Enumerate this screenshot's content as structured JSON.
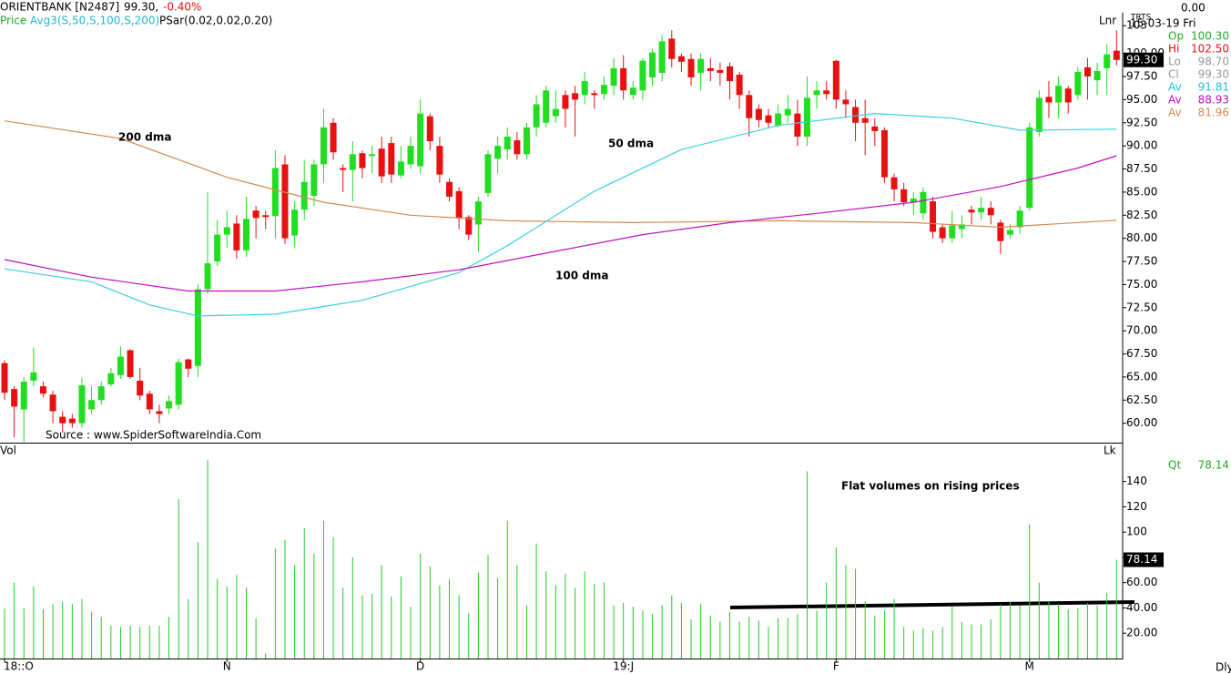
{
  "header": {
    "symbol": "ORIENTBANK [N2487]",
    "price": "99.30,",
    "change": "-0.40%",
    "series_label": "Price",
    "indicator": "Avg3(S,50,S,100,S,200)",
    "psar": "PSar(0.02,0.02,0.20)",
    "right_value": "0.00",
    "system": "TRTS",
    "date": "15-03-19 Fri",
    "scale_mode": "Lnr",
    "lock": "Lk",
    "interval": "Dly",
    "volume_label": "Vol"
  },
  "quote": [
    {
      "label": "Op",
      "value": "100.30"
    },
    {
      "label": "Hi",
      "value": "102.50"
    },
    {
      "label": "Lo",
      "value": "98.70"
    },
    {
      "label": "Cl",
      "value": "99.30"
    },
    {
      "label": "Av",
      "value": "91.81"
    },
    {
      "label": "Av",
      "value": "88.93"
    },
    {
      "label": "Av",
      "value": "81.96"
    }
  ],
  "volume_quote": {
    "label": "Qt",
    "value": "78.14"
  },
  "chart_data": [
    {
      "type": "candlestick",
      "source": "Source : www.SpiderSoftwareIndia.Com",
      "last_label": "99.30",
      "up_color": "#22dd22",
      "down_color": "#e81010",
      "ylim": [
        57.9,
        104.3
      ],
      "yticks": [
        {
          "value": 60,
          "label": "60.00"
        },
        {
          "value": 62.5,
          "label": "62.50"
        },
        {
          "value": 65,
          "label": "65.00"
        },
        {
          "value": 67.5,
          "label": "67.50"
        },
        {
          "value": 70,
          "label": "70.00"
        },
        {
          "value": 72.5,
          "label": "72.50"
        },
        {
          "value": 75,
          "label": "75.00"
        },
        {
          "value": 77.5,
          "label": "77.50"
        },
        {
          "value": 80,
          "label": "80.00"
        },
        {
          "value": 82.5,
          "label": "82.50"
        },
        {
          "value": 85,
          "label": "85.00"
        },
        {
          "value": 87.5,
          "label": "87.50"
        },
        {
          "value": 90,
          "label": "90.00"
        },
        {
          "value": 92.5,
          "label": "92.50"
        },
        {
          "value": 95,
          "label": "95.00"
        },
        {
          "value": 97.5,
          "label": "97.50"
        },
        {
          "value": 100,
          "label": "100.00"
        },
        103
      ],
      "open": [
        66.5,
        63.7,
        61.5,
        64.6,
        64,
        63.1,
        60.7,
        60.5,
        60,
        61.5,
        62.5,
        64.2,
        65.2,
        67.9,
        64.6,
        63.2,
        61.3,
        61.6,
        62,
        66.9,
        66.2,
        74.5,
        77.5,
        80.4,
        81.6,
        78.7,
        83,
        82.5,
        82.4,
        88,
        80.3,
        83.1,
        84.6,
        88,
        92.5,
        87.6,
        87.4,
        89.2,
        88.9,
        89.7,
        90.3,
        86.8,
        88,
        87.8,
        93.2,
        90,
        86.1,
        85.1,
        82.3,
        81.5,
        84.9,
        88.6,
        89.6,
        90.6,
        89.1,
        92,
        92.5,
        93.2,
        95.5,
        95.7,
        95.5,
        95.7,
        95.6,
        96.5,
        98.4,
        95.5,
        96,
        97.4,
        97.9,
        101.6,
        99.7,
        99.4,
        97.9,
        98.4,
        98.2,
        98.6,
        97.7,
        95.5,
        94,
        93.3,
        92.2,
        93.3,
        93.5,
        91,
        95.5,
        96,
        99.2,
        95,
        94.2,
        93,
        92.1,
        91.7,
        86.6,
        85.3,
        83.9,
        82.7,
        84,
        81.2,
        80,
        81,
        83.1,
        82.8,
        83.3,
        81.7,
        80.4,
        81.2,
        83.3,
        91.5,
        95.3,
        94.7,
        96.2,
        95.5,
        98.5,
        97.1,
        98.4,
        100.3
      ],
      "high": [
        66.8,
        64,
        65,
        68.2,
        64.5,
        63.5,
        61.3,
        61,
        64.9,
        64,
        64.5,
        66,
        68.3,
        68,
        66,
        63.5,
        62,
        63,
        67,
        67,
        75,
        85,
        82,
        83,
        82.5,
        84.5,
        83.5,
        83,
        89.5,
        89,
        84,
        88.5,
        88.5,
        94,
        93,
        88,
        90.5,
        89.5,
        90,
        91,
        91,
        90,
        91,
        95,
        93.5,
        91,
        86.5,
        85.5,
        82.5,
        84.5,
        89.5,
        91,
        92,
        91.5,
        92.5,
        95.5,
        96.5,
        96,
        96,
        96.5,
        98,
        96,
        97.5,
        99.5,
        99.8,
        97,
        99.5,
        100.5,
        102,
        102.5,
        100,
        100,
        100,
        99.5,
        99,
        99,
        98,
        96,
        94.5,
        94,
        94.5,
        95.5,
        95,
        97.5,
        97,
        97,
        99.3,
        96,
        95,
        95,
        93,
        92,
        87,
        86,
        85,
        85.5,
        84.5,
        81.5,
        83,
        82.5,
        83.5,
        84.5,
        84,
        82,
        81.5,
        83.5,
        92.5,
        96,
        97,
        97.5,
        96.5,
        98.5,
        99.5,
        99,
        101,
        102.5
      ],
      "low": [
        62.5,
        58.5,
        58,
        64,
        62.8,
        60,
        59,
        59.5,
        59.5,
        61,
        62,
        64,
        64.8,
        64.8,
        62.5,
        61,
        60,
        61,
        61.5,
        65,
        65,
        74,
        77,
        79,
        77.8,
        78,
        80,
        81,
        80,
        79.4,
        79,
        82,
        83.5,
        86,
        88.5,
        85,
        84,
        86.5,
        87,
        86,
        86,
        86.5,
        87.5,
        87,
        89.5,
        86,
        84,
        81,
        79.8,
        78.5,
        84.5,
        87,
        88.5,
        88.5,
        88.5,
        91,
        92,
        92.5,
        92,
        91,
        94.5,
        94,
        95,
        95.5,
        95,
        95,
        95,
        96.5,
        97,
        98.5,
        98,
        96.5,
        96,
        97,
        96.5,
        95,
        94,
        91,
        92,
        92,
        92,
        92.5,
        90,
        90,
        94,
        95,
        94,
        93,
        90.5,
        89,
        90,
        86,
        84,
        83.5,
        82.5,
        82,
        80,
        79.5,
        79.5,
        80,
        81.5,
        82,
        81.5,
        78.3,
        80,
        80.5,
        83,
        91,
        93,
        93,
        93.5,
        95,
        95,
        95.5,
        95.5,
        98.7
      ],
      "close": [
        63.3,
        61.8,
        64.5,
        65.5,
        63.2,
        61.3,
        60,
        60,
        64.1,
        62.5,
        64,
        65.4,
        67.2,
        65,
        63,
        61.5,
        61,
        62.4,
        66.6,
        65.9,
        74.5,
        77.3,
        80.4,
        81.2,
        78.7,
        82.1,
        82.2,
        82.3,
        87.6,
        80,
        83.1,
        86.1,
        88,
        92,
        89.3,
        87.4,
        89.1,
        87.6,
        89.1,
        86.7,
        86.9,
        88.3,
        90,
        93.5,
        90.5,
        86.9,
        84.5,
        82.2,
        80.4,
        84,
        89.1,
        90,
        91,
        89.1,
        92,
        94.5,
        96,
        94,
        94,
        95,
        97,
        95.5,
        96.6,
        98.4,
        96,
        96.3,
        99.2,
        100.1,
        101.3,
        99.4,
        99.1,
        97.4,
        99.4,
        98.1,
        97.9,
        97,
        95.5,
        93,
        92.8,
        92.5,
        93.5,
        94,
        91,
        95.2,
        96,
        95.6,
        95,
        94.5,
        92.5,
        92.5,
        91.6,
        86.6,
        85.3,
        83.9,
        84.3,
        85,
        80.7,
        80,
        81.4,
        81.5,
        82.8,
        83.3,
        82.5,
        79.7,
        80.9,
        83,
        92,
        95.2,
        94.7,
        96.5,
        94.7,
        98,
        97.5,
        98.1,
        99.9,
        99.3
      ],
      "series": [
        {
          "name": "200 dma",
          "color": "#d48a50",
          "x": [
            0,
            12,
            23,
            33,
            42,
            52,
            65,
            80,
            94,
            103,
            115
          ],
          "values": [
            92.7,
            90.8,
            86.6,
            83.9,
            82.5,
            81.9,
            81.7,
            81.9,
            81.7,
            81.2,
            81.96
          ]
        },
        {
          "name": "50 dma",
          "color": "#3ccfe0",
          "x": [
            0,
            9,
            15,
            20,
            28,
            37,
            47,
            52,
            61,
            70,
            80,
            90,
            98,
            105,
            115
          ],
          "values": [
            76.7,
            75.3,
            72.8,
            71.6,
            71.8,
            73.3,
            76.3,
            79.2,
            85.1,
            89.6,
            92.2,
            93.5,
            93.0,
            91.7,
            91.81
          ]
        },
        {
          "name": "100 dma",
          "color": "#c010c0",
          "x": [
            0,
            9,
            19,
            28,
            37,
            47,
            56,
            66,
            75,
            84,
            94,
            103,
            111,
            115
          ],
          "values": [
            77.7,
            75.8,
            74.3,
            74.3,
            75.3,
            76.6,
            78.4,
            80.4,
            81.7,
            82.7,
            83.9,
            85.6,
            87.6,
            88.93
          ]
        }
      ]
    },
    {
      "type": "bar",
      "annotation": "Flat volumes on rising prices",
      "last_label": "78.14",
      "color": "#22cc22",
      "ylim": [
        0,
        170
      ],
      "yticks": [
        {
          "value": 20,
          "label": "20.00"
        },
        {
          "value": 40,
          "label": "40.00"
        },
        {
          "value": 60,
          "label": "60.00"
        },
        {
          "value": 80,
          "label": "80.00"
        },
        {
          "value": 100,
          "label": "100"
        },
        {
          "value": 120,
          "label": "120"
        },
        {
          "value": 140,
          "label": "140"
        }
      ],
      "categories": [
        "18::O",
        null,
        null,
        null,
        null,
        null,
        null,
        null,
        null,
        null,
        null,
        null,
        null,
        null,
        null,
        null,
        null,
        null,
        null,
        null,
        null,
        null,
        null,
        "N",
        null,
        null,
        null,
        null,
        null,
        null,
        null,
        null,
        null,
        null,
        null,
        null,
        null,
        null,
        null,
        null,
        null,
        null,
        null,
        "D",
        null,
        null,
        null,
        null,
        null,
        null,
        null,
        null,
        null,
        null,
        null,
        null,
        null,
        null,
        null,
        null,
        null,
        null,
        null,
        null,
        "19:J",
        null,
        null,
        null,
        null,
        null,
        null,
        null,
        null,
        null,
        null,
        null,
        null,
        null,
        null,
        null,
        null,
        null,
        null,
        null,
        null,
        null,
        "F",
        null,
        null,
        null,
        null,
        null,
        null,
        null,
        null,
        null,
        null,
        null,
        null,
        null,
        null,
        null,
        null,
        null,
        null,
        null,
        "M",
        null,
        null,
        null,
        null,
        null,
        null,
        null,
        null,
        null
      ],
      "values": [
        39.5,
        60,
        40,
        57,
        39,
        43,
        45,
        43,
        47,
        37,
        33,
        26,
        25,
        26,
        25,
        26,
        26,
        33,
        126,
        47,
        92,
        157,
        63,
        57,
        66,
        56,
        32,
        4,
        87,
        94,
        74,
        103,
        83,
        109,
        96,
        56,
        80,
        50,
        51,
        74,
        49,
        65,
        41,
        83,
        73,
        58,
        63,
        50,
        36,
        68,
        82,
        64,
        109,
        74,
        42,
        91,
        69,
        58,
        67,
        56,
        69,
        59,
        60,
        42,
        44,
        41,
        38,
        35,
        42,
        50,
        44,
        31,
        43,
        34,
        29,
        37,
        29,
        33,
        30,
        25,
        32,
        32,
        35,
        148,
        38,
        60,
        88,
        74,
        71,
        45,
        34,
        38,
        47,
        25,
        22,
        24,
        22,
        25,
        41,
        29,
        27,
        27,
        31,
        43,
        45,
        42,
        106,
        60,
        45,
        43,
        39,
        40,
        44,
        42,
        52,
        78.14
      ]
    }
  ]
}
